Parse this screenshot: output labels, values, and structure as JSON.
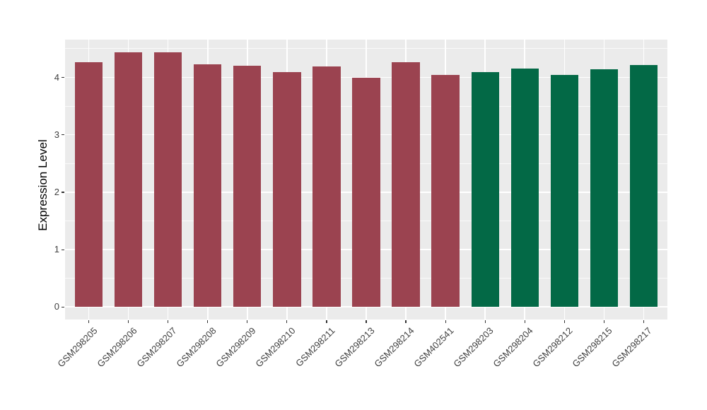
{
  "chart_data": {
    "type": "bar",
    "title": "",
    "xlabel": "",
    "ylabel": "Expression Level",
    "ylim": [
      -0.22,
      4.66
    ],
    "y_ticks": [
      0,
      1,
      2,
      3,
      4
    ],
    "y_minor_ticks": [
      0.5,
      1.5,
      2.5,
      3.5,
      4.5
    ],
    "grid": true,
    "legend_position": "none",
    "categories": [
      "GSM298205",
      "GSM298206",
      "GSM298207",
      "GSM298208",
      "GSM298209",
      "GSM298210",
      "GSM298211",
      "GSM298213",
      "GSM298214",
      "GSM402541",
      "GSM298203",
      "GSM298204",
      "GSM298212",
      "GSM298215",
      "GSM298217"
    ],
    "values": [
      4.26,
      4.44,
      4.44,
      4.23,
      4.21,
      4.09,
      4.19,
      3.99,
      4.26,
      4.05,
      4.09,
      4.16,
      4.04,
      4.14,
      4.22
    ],
    "bar_colors": [
      "#9B4350",
      "#9B4350",
      "#9B4350",
      "#9B4350",
      "#9B4350",
      "#9B4350",
      "#9B4350",
      "#9B4350",
      "#9B4350",
      "#9B4350",
      "#036946",
      "#036946",
      "#036946",
      "#036946",
      "#036946"
    ]
  },
  "colors": {
    "red_group": "#9B4350",
    "green_group": "#036946",
    "panel_background": "#EBEBEB",
    "grid_major": "#FFFFFF",
    "tick_mark": "#333333",
    "axis_text": "#404040",
    "axis_title": "#000000",
    "page_background": "#FFFFFF"
  }
}
